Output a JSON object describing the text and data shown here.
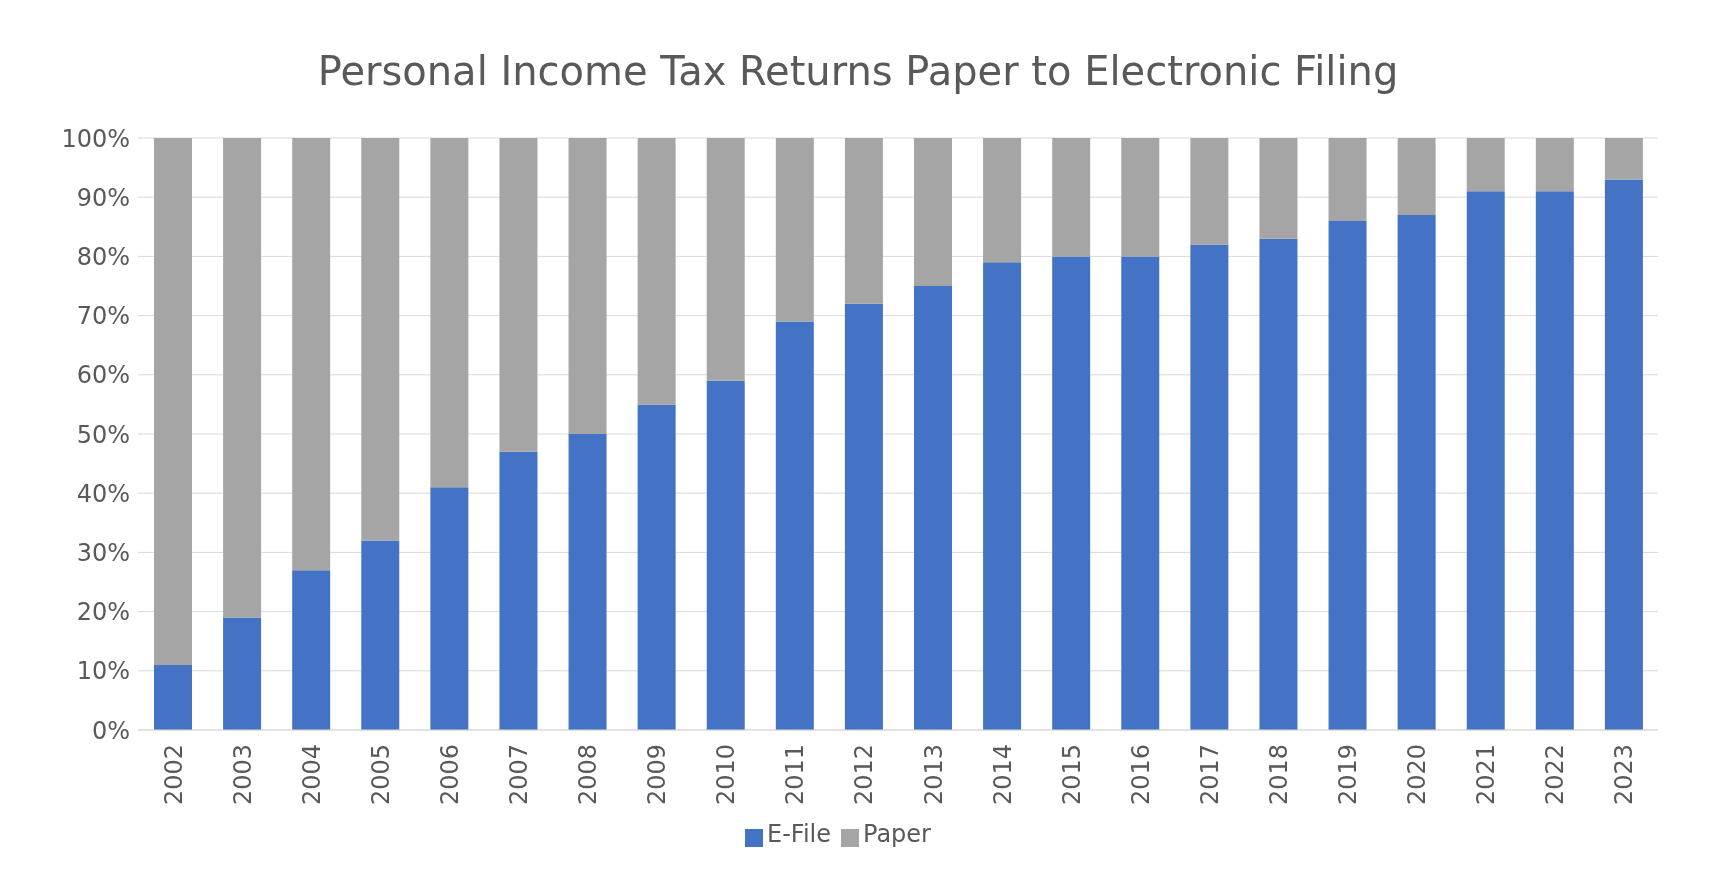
{
  "chart_data": {
    "type": "bar",
    "title": "Personal Income Tax Returns Paper to Electronic Filing",
    "stacked": true,
    "categories": [
      "2002",
      "2003",
      "2004",
      "2005",
      "2006",
      "2007",
      "2008",
      "2009",
      "2010",
      "2011",
      "2012",
      "2013",
      "2014",
      "2015",
      "2016",
      "2017",
      "2018",
      "2019",
      "2020",
      "2021",
      "2022",
      "2023"
    ],
    "series": [
      {
        "name": "E-File",
        "color": "#4472c4",
        "values": [
          11,
          19,
          27,
          32,
          41,
          47,
          50,
          55,
          59,
          69,
          72,
          75,
          79,
          80,
          80,
          82,
          83,
          86,
          87,
          91,
          91,
          93
        ]
      },
      {
        "name": "Paper",
        "color": "#a5a5a5",
        "values": [
          89,
          81,
          73,
          68,
          59,
          53,
          50,
          45,
          41,
          31,
          28,
          25,
          21,
          20,
          20,
          18,
          17,
          14,
          13,
          9,
          9,
          7
        ]
      }
    ],
    "ylim": [
      0,
      100
    ],
    "yticks": [
      {
        "value": 0,
        "label": "0%"
      },
      {
        "value": 10,
        "label": "10%"
      },
      {
        "value": 20,
        "label": "20%"
      },
      {
        "value": 30,
        "label": "30%"
      },
      {
        "value": 40,
        "label": "40%"
      },
      {
        "value": 50,
        "label": "50%"
      },
      {
        "value": 60,
        "label": "60%"
      },
      {
        "value": 70,
        "label": "70%"
      },
      {
        "value": 80,
        "label": "80%"
      },
      {
        "value": 90,
        "label": "90%"
      },
      {
        "value": 100,
        "label": "100%"
      }
    ],
    "grid": "y",
    "legend": "bottom"
  }
}
